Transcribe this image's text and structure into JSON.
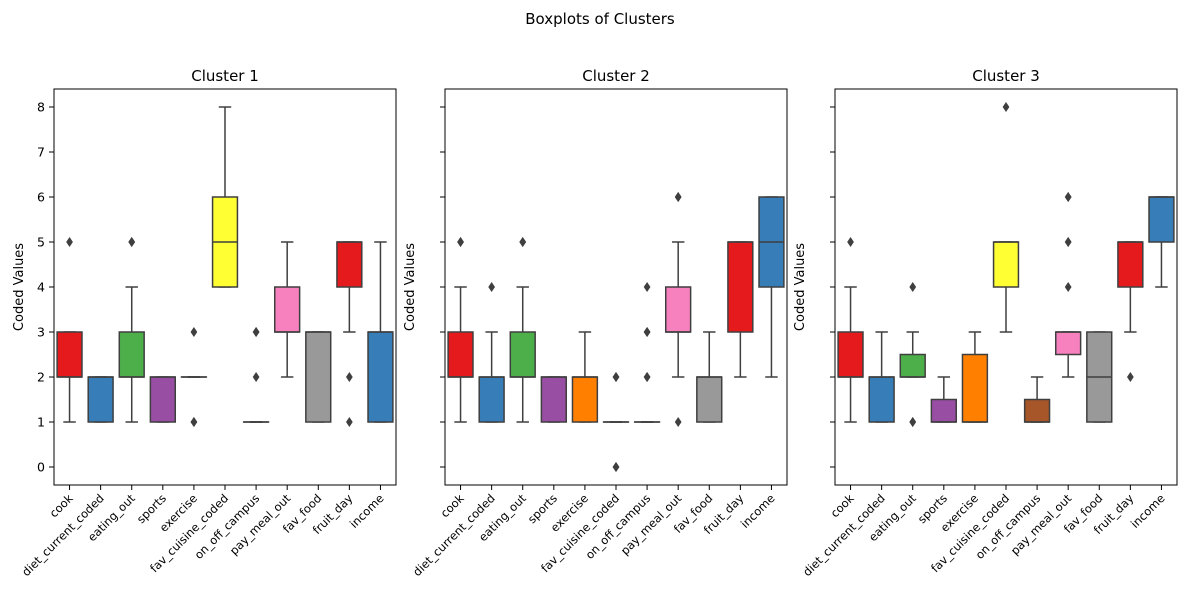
{
  "chart_data": {
    "type": "box",
    "suptitle": "Boxplots of Clusters",
    "ylabel": "Coded Values",
    "ylim": [
      -0.4,
      8.4
    ],
    "yticks": [
      0,
      1,
      2,
      3,
      4,
      5,
      6,
      7,
      8
    ],
    "categories": [
      "cook",
      "diet_current_coded",
      "eating_out",
      "sports",
      "exercise",
      "fav_cuisine_coded",
      "on_off_campus",
      "pay_meal_out",
      "fav_food",
      "fruit_day",
      "income"
    ],
    "colors": [
      "#e41a1c",
      "#377eb8",
      "#4daf4a",
      "#984ea3",
      "#ff7f00",
      "#ffff33",
      "#a65628",
      "#f781bf",
      "#999999",
      "#e41a1c",
      "#377eb8"
    ],
    "panels": [
      {
        "title": "Cluster 1",
        "boxes": [
          {
            "category": "cook",
            "min": 1,
            "q1": 2,
            "median": 2,
            "q3": 3,
            "max": 3,
            "outliers": [
              5
            ]
          },
          {
            "category": "diet_current_coded",
            "min": 1,
            "q1": 1,
            "median": 2,
            "q3": 2,
            "max": 2,
            "outliers": []
          },
          {
            "category": "eating_out",
            "min": 1,
            "q1": 2,
            "median": 2,
            "q3": 3,
            "max": 4,
            "outliers": [
              5,
              5
            ]
          },
          {
            "category": "sports",
            "min": 1,
            "q1": 1,
            "median": 2,
            "q3": 2,
            "max": 2,
            "outliers": []
          },
          {
            "category": "exercise",
            "min": 2,
            "q1": 2,
            "median": 2,
            "q3": 2,
            "max": 2,
            "outliers": [
              3,
              1,
              1
            ]
          },
          {
            "category": "fav_cuisine_coded",
            "min": 4,
            "q1": 4,
            "median": 5,
            "q3": 6,
            "max": 8,
            "outliers": []
          },
          {
            "category": "on_off_campus",
            "min": 1,
            "q1": 1,
            "median": 1,
            "q3": 1,
            "max": 1,
            "outliers": [
              3,
              3,
              2
            ]
          },
          {
            "category": "pay_meal_out",
            "min": 2,
            "q1": 3,
            "median": 3,
            "q3": 4,
            "max": 5,
            "outliers": []
          },
          {
            "category": "fav_food",
            "min": 1,
            "q1": 1,
            "median": 3,
            "q3": 3,
            "max": 3,
            "outliers": []
          },
          {
            "category": "fruit_day",
            "min": 3,
            "q1": 4,
            "median": 5,
            "q3": 5,
            "max": 5,
            "outliers": [
              2,
              1
            ]
          },
          {
            "category": "income",
            "min": 1,
            "q1": 1,
            "median": 3,
            "q3": 3,
            "max": 5,
            "outliers": []
          }
        ]
      },
      {
        "title": "Cluster 2",
        "boxes": [
          {
            "category": "cook",
            "min": 1,
            "q1": 2,
            "median": 2,
            "q3": 3,
            "max": 4,
            "outliers": [
              5,
              5
            ]
          },
          {
            "category": "diet_current_coded",
            "min": 1,
            "q1": 1,
            "median": 2,
            "q3": 2,
            "max": 3,
            "outliers": [
              4
            ]
          },
          {
            "category": "eating_out",
            "min": 1,
            "q1": 2,
            "median": 2,
            "q3": 3,
            "max": 4,
            "outliers": [
              5,
              5
            ]
          },
          {
            "category": "sports",
            "min": 1,
            "q1": 1,
            "median": 2,
            "q3": 2,
            "max": 2,
            "outliers": []
          },
          {
            "category": "exercise",
            "min": 1,
            "q1": 1,
            "median": 2,
            "q3": 2,
            "max": 3,
            "outliers": []
          },
          {
            "category": "fav_cuisine_coded",
            "min": 1,
            "q1": 1,
            "median": 1,
            "q3": 1,
            "max": 1,
            "outliers": [
              2,
              2,
              0,
              0
            ]
          },
          {
            "category": "on_off_campus",
            "min": 1,
            "q1": 1,
            "median": 1,
            "q3": 1,
            "max": 1,
            "outliers": [
              4,
              3,
              3,
              2,
              2
            ]
          },
          {
            "category": "pay_meal_out",
            "min": 2,
            "q1": 3,
            "median": 3,
            "q3": 4,
            "max": 5,
            "outliers": [
              6,
              6,
              1
            ]
          },
          {
            "category": "fav_food",
            "min": 1,
            "q1": 1,
            "median": 2,
            "q3": 2,
            "max": 3,
            "outliers": []
          },
          {
            "category": "fruit_day",
            "min": 2,
            "q1": 3,
            "median": 5,
            "q3": 5,
            "max": 5,
            "outliers": []
          },
          {
            "category": "income",
            "min": 2,
            "q1": 4,
            "median": 5,
            "q3": 6,
            "max": 6,
            "outliers": []
          }
        ]
      },
      {
        "title": "Cluster 3",
        "boxes": [
          {
            "category": "cook",
            "min": 1,
            "q1": 2,
            "median": 2,
            "q3": 3,
            "max": 4,
            "outliers": [
              5
            ]
          },
          {
            "category": "diet_current_coded",
            "min": 1,
            "q1": 1,
            "median": 2,
            "q3": 2,
            "max": 3,
            "outliers": []
          },
          {
            "category": "eating_out",
            "min": 2,
            "q1": 2,
            "median": 2,
            "q3": 2.5,
            "max": 3,
            "outliers": [
              4,
              1,
              1
            ]
          },
          {
            "category": "sports",
            "min": 1,
            "q1": 1,
            "median": 1,
            "q3": 1.5,
            "max": 2,
            "outliers": []
          },
          {
            "category": "exercise",
            "min": 1,
            "q1": 1,
            "median": 1,
            "q3": 2.5,
            "max": 3,
            "outliers": []
          },
          {
            "category": "fav_cuisine_coded",
            "min": 3,
            "q1": 4,
            "median": 5,
            "q3": 5,
            "max": 5,
            "outliers": [
              8
            ]
          },
          {
            "category": "on_off_campus",
            "min": 1,
            "q1": 1,
            "median": 1,
            "q3": 1.5,
            "max": 2,
            "outliers": []
          },
          {
            "category": "pay_meal_out",
            "min": 2,
            "q1": 2.5,
            "median": 3,
            "q3": 3,
            "max": 3,
            "outliers": [
              6,
              6,
              5,
              5,
              4
            ]
          },
          {
            "category": "fav_food",
            "min": 1,
            "q1": 1,
            "median": 2,
            "q3": 3,
            "max": 3,
            "outliers": []
          },
          {
            "category": "fruit_day",
            "min": 3,
            "q1": 4,
            "median": 5,
            "q3": 5,
            "max": 5,
            "outliers": [
              2
            ]
          },
          {
            "category": "income",
            "min": 4,
            "q1": 5,
            "median": 6,
            "q3": 6,
            "max": 6,
            "outliers": []
          }
        ]
      }
    ]
  }
}
